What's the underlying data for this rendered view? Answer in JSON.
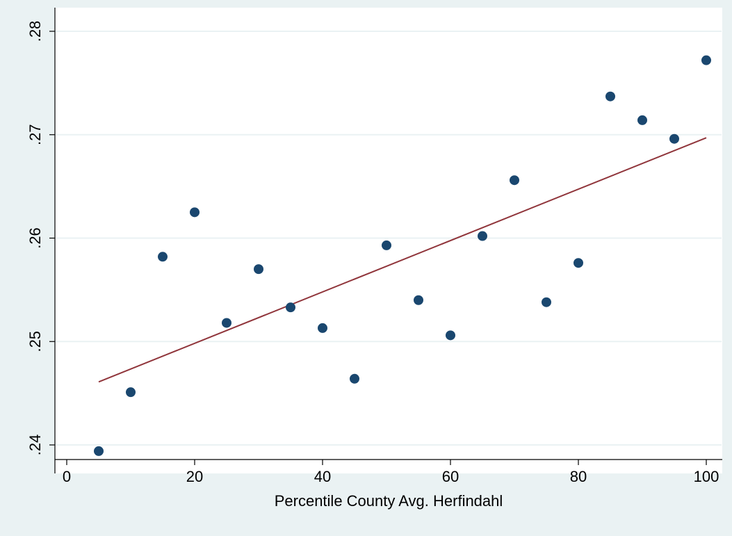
{
  "chart_data": {
    "type": "scatter",
    "title": "",
    "xlabel": "Percentile County Avg. Herfindahl",
    "ylabel": "",
    "xlim": [
      0,
      100
    ],
    "ylim": [
      0.24,
      0.28
    ],
    "x_ticks": [
      0,
      20,
      40,
      60,
      80,
      100
    ],
    "x_tick_labels": [
      "0",
      "20",
      "40",
      "60",
      "80",
      "100"
    ],
    "y_ticks": [
      0.24,
      0.25,
      0.26,
      0.27,
      0.28
    ],
    "y_tick_labels": [
      ".24",
      ".25",
      ".26",
      ".27",
      ".28"
    ],
    "grid": "horizontal",
    "legend": "none",
    "series": [
      {
        "kind": "points",
        "color": "#1a476f",
        "x": [
          5,
          10,
          15,
          20,
          25,
          30,
          35,
          40,
          45,
          50,
          55,
          60,
          65,
          70,
          75,
          80,
          85,
          90,
          95,
          100
        ],
        "y": [
          0.2394,
          0.2451,
          0.2582,
          0.2625,
          0.2518,
          0.257,
          0.2533,
          0.2513,
          0.2464,
          0.2593,
          0.254,
          0.2506,
          0.2602,
          0.2656,
          0.2538,
          0.2576,
          0.2737,
          0.2714,
          0.2696,
          0.2772
        ]
      },
      {
        "kind": "fit-line",
        "color": "#90353b",
        "x": [
          5,
          100
        ],
        "y": [
          0.2461,
          0.2697
        ]
      }
    ]
  },
  "colors": {
    "background": "#eaf2f3",
    "plot_area": "#ffffff",
    "gridline": "#eaf2f3",
    "axis": "#000000"
  }
}
